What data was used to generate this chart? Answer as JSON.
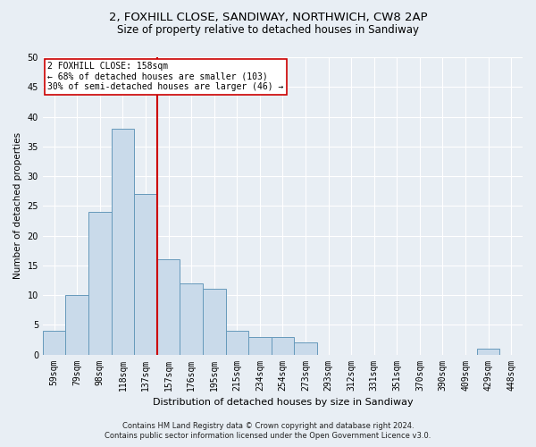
{
  "title_line1": "2, FOXHILL CLOSE, SANDIWAY, NORTHWICH, CW8 2AP",
  "title_line2": "Size of property relative to detached houses in Sandiway",
  "xlabel": "Distribution of detached houses by size in Sandiway",
  "ylabel": "Number of detached properties",
  "categories": [
    "59sqm",
    "79sqm",
    "98sqm",
    "118sqm",
    "137sqm",
    "157sqm",
    "176sqm",
    "195sqm",
    "215sqm",
    "234sqm",
    "254sqm",
    "273sqm",
    "293sqm",
    "312sqm",
    "331sqm",
    "351sqm",
    "370sqm",
    "390sqm",
    "409sqm",
    "429sqm",
    "448sqm"
  ],
  "values": [
    4,
    10,
    24,
    38,
    27,
    16,
    12,
    11,
    4,
    3,
    3,
    2,
    0,
    0,
    0,
    0,
    0,
    0,
    0,
    1,
    0
  ],
  "bar_color": "#c9daea",
  "bar_edge_color": "#6699bb",
  "vline_x_index": 5,
  "vline_color": "#cc0000",
  "annotation_text": "2 FOXHILL CLOSE: 158sqm\n← 68% of detached houses are smaller (103)\n30% of semi-detached houses are larger (46) →",
  "annotation_box_color": "#ffffff",
  "annotation_box_edge_color": "#cc0000",
  "ylim": [
    0,
    50
  ],
  "yticks": [
    0,
    5,
    10,
    15,
    20,
    25,
    30,
    35,
    40,
    45,
    50
  ],
  "footer_line1": "Contains HM Land Registry data © Crown copyright and database right 2024.",
  "footer_line2": "Contains public sector information licensed under the Open Government Licence v3.0.",
  "bg_color": "#e8eef4",
  "plot_bg_color": "#e8eef4",
  "grid_color": "#ffffff",
  "title_fontsize": 9.5,
  "subtitle_fontsize": 8.5,
  "xlabel_fontsize": 8,
  "ylabel_fontsize": 7.5,
  "tick_fontsize": 7,
  "annotation_fontsize": 7,
  "footer_fontsize": 6
}
